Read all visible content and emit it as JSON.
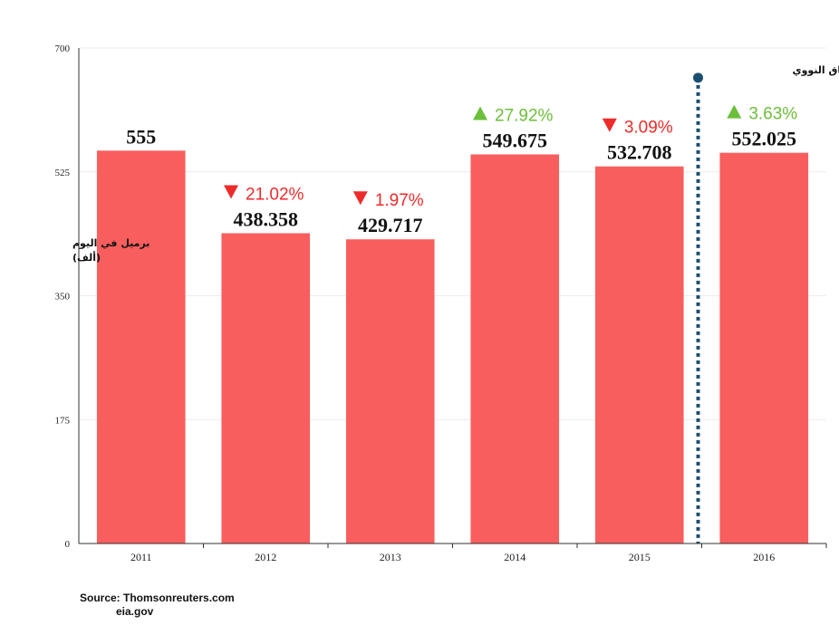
{
  "chart_data": {
    "type": "bar",
    "categories": [
      "2011",
      "2012",
      "2013",
      "2014",
      "2015",
      "2016"
    ],
    "values": [
      555,
      438.358,
      429.717,
      549.675,
      532.708,
      552.025
    ],
    "value_labels": [
      "555",
      "438.358",
      "429.717",
      "549.675",
      "532.708",
      "552.025"
    ],
    "changes": [
      null,
      {
        "direction": "down",
        "text": "21.02%"
      },
      {
        "direction": "down",
        "text": "1.97%"
      },
      {
        "direction": "up",
        "text": "27.92%"
      },
      {
        "direction": "down",
        "text": "3.09%"
      },
      {
        "direction": "up",
        "text": "3.63%"
      }
    ],
    "ylabel_lines": [
      "برميل في اليوم",
      "(ألف)"
    ],
    "ylim": [
      0,
      700
    ],
    "yticks": [
      0,
      175,
      350,
      525,
      700
    ],
    "grid": true,
    "bar_color": "#f95e5e",
    "up_color": "#6bbf3a",
    "down_color": "#ee2b2b",
    "annotation": {
      "label": "تطبيق الاتفاق النووي",
      "position": "between 2015 and 2016",
      "value": 658,
      "color": "#1b4f72"
    }
  },
  "source": {
    "line1": "Source: Thomsonreuters.com",
    "line2": "eia.gov"
  }
}
